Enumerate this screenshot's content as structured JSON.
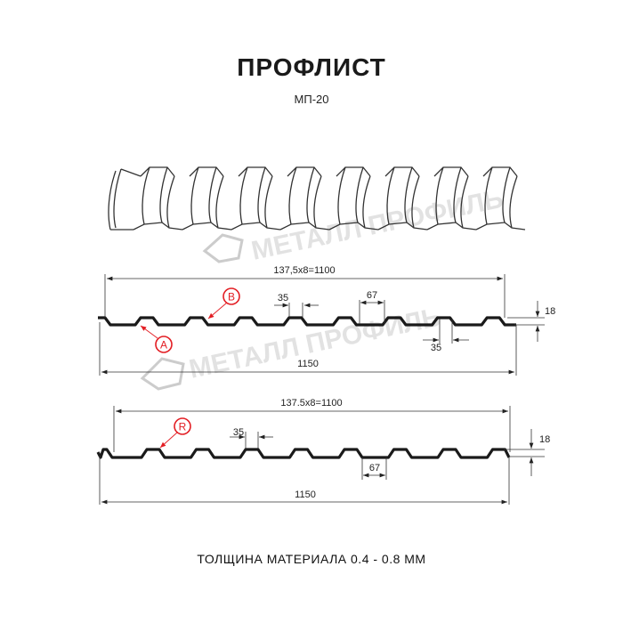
{
  "header": {
    "title": "ПРОФЛИСТ",
    "subtitle": "МП-20"
  },
  "watermark": "МЕТАЛЛ ПРОФИЛЬ",
  "profile_1": {
    "pitch_label": "137,5x8=1100",
    "width_label": "1150",
    "top_flange_label": "35",
    "bottom_flange_label": "35",
    "valley_label": "67",
    "height_label": "18",
    "callouts": [
      "B",
      "A"
    ]
  },
  "profile_2": {
    "pitch_label": "137.5x8=1100",
    "width_label": "1150",
    "top_flange_label": "35",
    "valley_label": "67",
    "height_label": "18",
    "callouts": [
      "R"
    ]
  },
  "footer": {
    "thickness": "ТОЛЩИНА МАТЕРИАЛА 0.4 - 0.8 ММ"
  },
  "colors": {
    "line": "#1a1a1a",
    "callout": "#e31e24",
    "watermark": "#c8c8c8"
  }
}
